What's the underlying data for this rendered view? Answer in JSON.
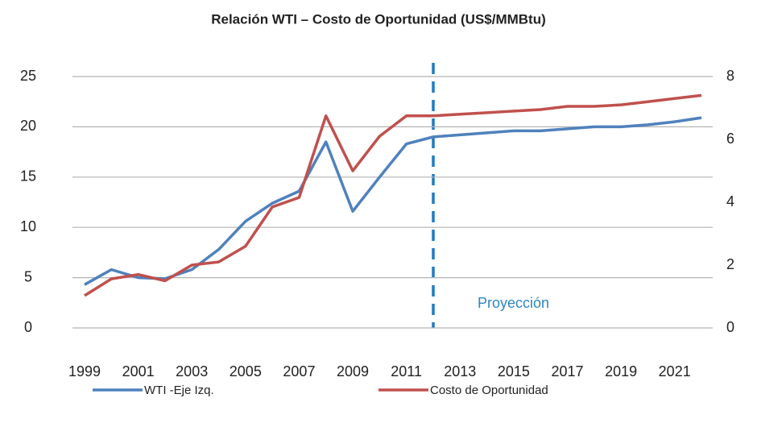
{
  "chart_data": {
    "type": "line",
    "title": "Relación WTI – Costo de Oportunidad (US$/MMBtu)",
    "x": [
      1999,
      2000,
      2001,
      2002,
      2003,
      2004,
      2005,
      2006,
      2007,
      2008,
      2009,
      2010,
      2011,
      2012,
      2013,
      2014,
      2015,
      2016,
      2017,
      2018,
      2019,
      2020,
      2021,
      2022
    ],
    "series": [
      {
        "name": "WTI -Eje Izq.",
        "color": "#4f81bd",
        "values": [
          4.3,
          5.8,
          5.0,
          4.9,
          5.8,
          7.8,
          10.6,
          12.4,
          13.6,
          18.5,
          11.6,
          15.0,
          18.3,
          19.0,
          19.2,
          19.4,
          19.6,
          19.6,
          19.8,
          20.0,
          20.0,
          20.2,
          20.5,
          20.9
        ]
      },
      {
        "name": "Costo de Oportunidad",
        "color": "#c0504d",
        "axis": "y2",
        "values": [
          1.03,
          1.56,
          1.7,
          1.5,
          2.0,
          2.1,
          2.6,
          3.85,
          4.15,
          6.75,
          5.0,
          6.1,
          6.75,
          6.75,
          6.8,
          6.85,
          6.9,
          6.95,
          7.05,
          7.05,
          7.1,
          7.2,
          7.3,
          7.4
        ]
      }
    ],
    "annotation": "Proyección",
    "xlim": [
      1998.55,
      2022.42
    ],
    "xticks": [
      1999,
      2001,
      2003,
      2005,
      2007,
      2009,
      2011,
      2013,
      2015,
      2017,
      2019,
      2021
    ],
    "ylim": [
      0,
      25
    ],
    "yticks": [
      0,
      5,
      10,
      15,
      20,
      25
    ],
    "y2lim": [
      0,
      8
    ],
    "y2ticks": [
      0,
      2,
      4,
      6,
      8
    ],
    "grid": true
  }
}
